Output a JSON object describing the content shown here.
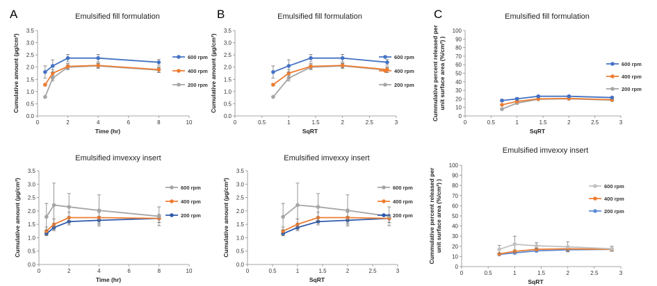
{
  "panel_labels": [
    "A",
    "B",
    "C"
  ],
  "chart_data": [
    {
      "id": "A1",
      "type": "line",
      "panel_label": "A",
      "title": "Emulsified fill formulation",
      "xlabel": "Time (hr)",
      "ylabel": "Cumulative amount (µg/cm²)",
      "xlim": [
        0,
        10
      ],
      "ylim": [
        0,
        3.5
      ],
      "xticks": [
        0,
        2,
        4,
        6,
        8,
        10
      ],
      "yticks": [
        0,
        0.5,
        1,
        1.5,
        2,
        2.5,
        3,
        3.5
      ],
      "tick_decimals": [
        0,
        1
      ],
      "x": [
        0.5,
        1,
        2,
        4,
        8
      ],
      "series": [
        {
          "name": "600 rpm",
          "color": "#4472c4",
          "values": [
            1.8,
            2.05,
            2.37,
            2.37,
            2.2
          ],
          "err": [
            0.25,
            0.25,
            0.15,
            0.15,
            0.12
          ]
        },
        {
          "name": "400 rpm",
          "color": "#ed7d31",
          "values": [
            1.28,
            1.75,
            2.03,
            2.07,
            1.9
          ],
          "err": [
            0.05,
            0.15,
            0.12,
            0.1,
            0.12
          ]
        },
        {
          "name": "200 rpm",
          "color": "#a5a5a5",
          "values": [
            0.78,
            1.55,
            2.0,
            2.05,
            1.88
          ],
          "err": [
            0.03,
            0.12,
            0.1,
            0.1,
            0.1
          ]
        }
      ],
      "legend": "right"
    },
    {
      "id": "B1",
      "type": "line",
      "panel_label": "B",
      "title": "Emulsified fill formulation",
      "xlabel": "SqRT",
      "ylabel": "Cumulative amount (µg/cm²)",
      "xlim": [
        0,
        3
      ],
      "ylim": [
        0,
        3.5
      ],
      "xticks": [
        0,
        0.5,
        1,
        1.5,
        2,
        2.5,
        3
      ],
      "yticks": [
        0,
        0.5,
        1,
        1.5,
        2,
        2.5,
        3,
        3.5
      ],
      "tick_decimals": [
        1,
        1
      ],
      "x": [
        0.71,
        1.0,
        1.41,
        2.0,
        2.83
      ],
      "series": [
        {
          "name": "600 rpm",
          "color": "#4472c4",
          "values": [
            1.8,
            2.05,
            2.37,
            2.37,
            2.2
          ],
          "err": [
            0.25,
            0.25,
            0.15,
            0.15,
            0.12
          ]
        },
        {
          "name": "400 rpm",
          "color": "#ed7d31",
          "values": [
            1.28,
            1.75,
            2.03,
            2.07,
            1.9
          ],
          "err": [
            0.05,
            0.15,
            0.12,
            0.1,
            0.12
          ]
        },
        {
          "name": "200 rpm",
          "color": "#a5a5a5",
          "values": [
            0.78,
            1.55,
            2.0,
            2.05,
            1.88
          ],
          "err": [
            0.03,
            0.12,
            0.1,
            0.1,
            0.1
          ]
        }
      ],
      "legend": "right"
    },
    {
      "id": "C1",
      "type": "line",
      "panel_label": "C",
      "title": "Emulsified fill formulation",
      "xlabel": "SqRT",
      "ylabel_lines": [
        "Cummulative percent released per",
        "unit surface area  (%/cm²)  )"
      ],
      "xlim": [
        0,
        3
      ],
      "ylim": [
        0,
        100
      ],
      "xticks": [
        0,
        0.5,
        1,
        1.5,
        2,
        2.5,
        3
      ],
      "yticks": [
        0,
        10,
        20,
        30,
        40,
        50,
        60,
        70,
        80,
        90,
        100
      ],
      "tick_decimals": [
        1,
        0
      ],
      "x": [
        0.71,
        1.0,
        1.41,
        2.0,
        2.83
      ],
      "series": [
        {
          "name": "600 rpm",
          "color": "#4472c4",
          "values": [
            18,
            20,
            23,
            23,
            21.5
          ],
          "err": [
            1.5,
            1.5,
            1,
            1,
            1
          ]
        },
        {
          "name": "400 rpm",
          "color": "#ed7d31",
          "values": [
            13,
            17,
            20,
            20.5,
            19
          ],
          "err": [
            0.8,
            1,
            1,
            1,
            1
          ]
        },
        {
          "name": "200 rpm",
          "color": "#a5a5a5",
          "values": [
            8,
            15,
            19.5,
            20,
            18.5
          ],
          "err": [
            0.5,
            1,
            1,
            1,
            1
          ]
        }
      ],
      "legend": "right"
    },
    {
      "id": "A2",
      "type": "line",
      "title": "Emulsified imvexxy insert",
      "xlabel": "Time (hr)",
      "ylabel": "Cumulative amount (µg/cm²)",
      "xlim": [
        0,
        10
      ],
      "ylim": [
        0,
        3.5
      ],
      "xticks": [
        0,
        2,
        4,
        6,
        8,
        10
      ],
      "yticks": [
        0,
        0.5,
        1,
        1.5,
        2,
        2.5,
        3,
        3.5
      ],
      "tick_decimals": [
        0,
        1
      ],
      "x": [
        0.5,
        1,
        2,
        4,
        8
      ],
      "series": [
        {
          "name": "600 rpm",
          "color": "#a5a5a5",
          "values": [
            1.78,
            2.22,
            2.15,
            2.02,
            1.8
          ],
          "err": [
            0.5,
            0.82,
            0.5,
            0.58,
            0.35
          ]
        },
        {
          "name": "400 rpm",
          "color": "#ed7d31",
          "values": [
            1.25,
            1.5,
            1.75,
            1.75,
            1.72
          ],
          "err": [
            0.15,
            0.2,
            0.2,
            0.2,
            0.15
          ]
        },
        {
          "name": "200 rpm",
          "color": "#2e5aac",
          "values": [
            1.15,
            1.38,
            1.6,
            1.65,
            1.72
          ],
          "err": [
            0.08,
            0.12,
            0.12,
            0.15,
            0.15
          ]
        }
      ],
      "legend": "right"
    },
    {
      "id": "B2",
      "type": "line",
      "title": "Emulsified imvexxy insert",
      "xlabel": "SqRT",
      "ylabel": "Cumulative amount (µg/cm²)",
      "xlim": [
        0,
        3
      ],
      "ylim": [
        0,
        3.5
      ],
      "xticks": [
        0,
        0.5,
        1,
        1.5,
        2,
        2.5,
        3
      ],
      "yticks": [
        0,
        0.5,
        1,
        1.5,
        2,
        2.5,
        3,
        3.5
      ],
      "tick_decimals": [
        1,
        1
      ],
      "x": [
        0.71,
        1.0,
        1.41,
        2.0,
        2.83
      ],
      "series": [
        {
          "name": "600 rpm",
          "color": "#a5a5a5",
          "values": [
            1.78,
            2.22,
            2.15,
            2.02,
            1.8
          ],
          "err": [
            0.5,
            0.82,
            0.5,
            0.58,
            0.35
          ]
        },
        {
          "name": "400 rpm",
          "color": "#ed7d31",
          "values": [
            1.25,
            1.5,
            1.75,
            1.75,
            1.72
          ],
          "err": [
            0.15,
            0.2,
            0.2,
            0.2,
            0.15
          ]
        },
        {
          "name": "200 rpm",
          "color": "#2e5aac",
          "values": [
            1.15,
            1.38,
            1.6,
            1.65,
            1.72
          ],
          "err": [
            0.08,
            0.12,
            0.12,
            0.15,
            0.15
          ]
        }
      ],
      "legend": "right"
    },
    {
      "id": "C2",
      "type": "line",
      "title": "Emulsified imvexxy insert",
      "xlabel": "SqRT",
      "ylabel_lines": [
        "Cummulative percent released per",
        "unit surface area  (%/cm²)  )"
      ],
      "xlim": [
        0,
        3
      ],
      "ylim": [
        0,
        100
      ],
      "xticks": [
        0,
        0.5,
        1,
        1.5,
        2,
        2.5,
        3
      ],
      "yticks": [
        0,
        10,
        20,
        30,
        40,
        50,
        60,
        70,
        80,
        90,
        100
      ],
      "tick_decimals": [
        1,
        0
      ],
      "x": [
        0.71,
        1.0,
        1.41,
        2.0,
        2.83
      ],
      "series": [
        {
          "name": "600 rpm",
          "color": "#c0c0c0",
          "values": [
            17,
            22,
            20.5,
            19.5,
            17.5
          ],
          "err": [
            4,
            8,
            3,
            5,
            2.5
          ]
        },
        {
          "name": "400 rpm",
          "color": "#ed7d31",
          "values": [
            12.5,
            15,
            17,
            17.5,
            17
          ],
          "err": [
            1,
            1.5,
            1.5,
            2,
            1.5
          ]
        },
        {
          "name": "200 rpm",
          "color": "#5b8bd6",
          "values": [
            12,
            13.5,
            15.5,
            16.5,
            17
          ],
          "err": [
            0.8,
            1,
            1,
            1.5,
            1.5
          ]
        }
      ],
      "legend": "right"
    }
  ]
}
